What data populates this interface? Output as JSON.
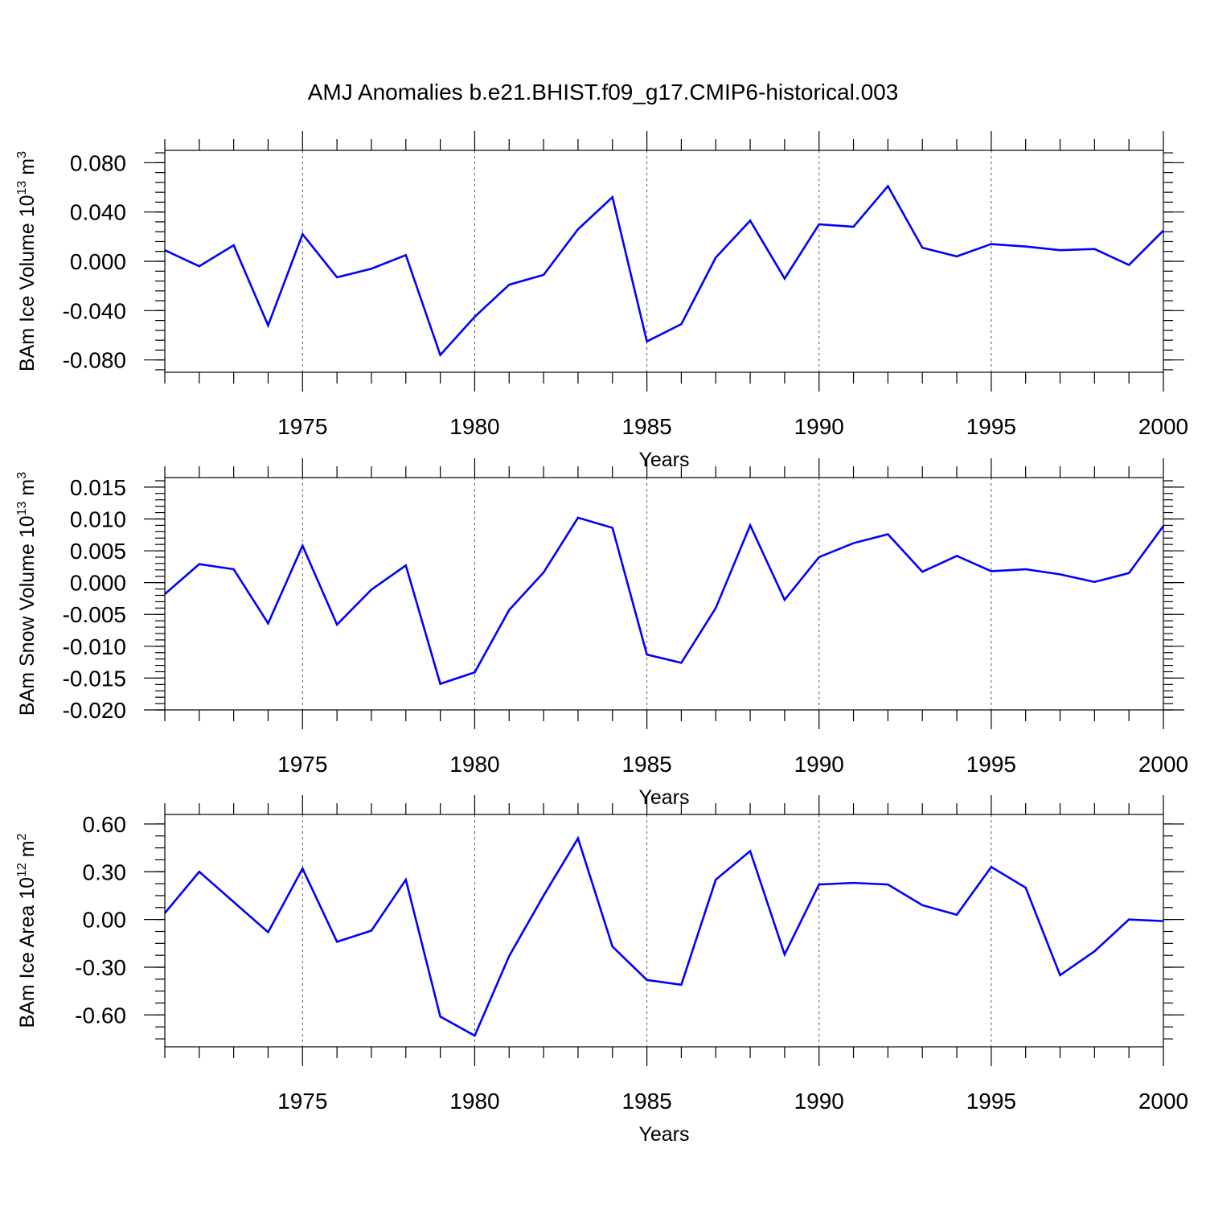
{
  "title": "AMJ Anomalies b.e21.BHIST.f09_g17.CMIP6-historical.003",
  "colors": {
    "line": "#0000ff",
    "axis": "#000000",
    "grid": "#555555"
  },
  "chart_data": [
    {
      "type": "line",
      "ylabel": "BAm Ice Volume 10",
      "ylabel_exp": "13",
      "ylabel_unit": " m",
      "ylabel_unit_exp": "3",
      "xlabel": "Years",
      "xlim": [
        1971,
        2000
      ],
      "ylim": [
        -0.09,
        0.09
      ],
      "ytick_values": [
        -0.08,
        -0.04,
        0.0,
        0.04,
        0.08
      ],
      "ytick_labels": [
        "-0.080",
        "-0.040",
        "0.000",
        "0.040",
        "0.080"
      ],
      "yminor_step": 0.008,
      "xtick_values": [
        1975,
        1980,
        1985,
        1990,
        1995,
        2000
      ],
      "xtick_labels": [
        "1975",
        "1980",
        "1985",
        "1990",
        "1995",
        "2000"
      ],
      "x": [
        1971,
        1972,
        1973,
        1974,
        1975,
        1976,
        1977,
        1978,
        1979,
        1980,
        1981,
        1982,
        1983,
        1984,
        1985,
        1986,
        1987,
        1988,
        1989,
        1990,
        1991,
        1992,
        1993,
        1994,
        1995,
        1996,
        1997,
        1998,
        1999,
        2000
      ],
      "y": [
        0.009,
        -0.004,
        0.013,
        -0.052,
        0.022,
        -0.013,
        -0.006,
        0.005,
        -0.076,
        -0.045,
        -0.019,
        -0.011,
        0.026,
        0.052,
        -0.065,
        -0.051,
        0.003,
        0.033,
        -0.014,
        0.03,
        0.028,
        0.061,
        0.011,
        0.004,
        0.014,
        0.012,
        0.009,
        0.01,
        -0.003,
        0.025
      ]
    },
    {
      "type": "line",
      "ylabel": "BAm Snow Volume 10",
      "ylabel_exp": "13",
      "ylabel_unit": " m",
      "ylabel_unit_exp": "3",
      "xlabel": "Years",
      "xlim": [
        1971,
        2000
      ],
      "ylim": [
        -0.02,
        0.0165
      ],
      "ytick_values": [
        -0.02,
        -0.015,
        -0.01,
        -0.005,
        0.0,
        0.005,
        0.01,
        0.015
      ],
      "ytick_labels": [
        "-0.020",
        "-0.015",
        "-0.010",
        "-0.005",
        "0.000",
        "0.005",
        "0.010",
        "0.015"
      ],
      "yminor_step": 0.001,
      "xtick_values": [
        1975,
        1980,
        1985,
        1990,
        1995,
        2000
      ],
      "xtick_labels": [
        "1975",
        "1980",
        "1985",
        "1990",
        "1995",
        "2000"
      ],
      "x": [
        1971,
        1972,
        1973,
        1974,
        1975,
        1976,
        1977,
        1978,
        1979,
        1980,
        1981,
        1982,
        1983,
        1984,
        1985,
        1986,
        1987,
        1988,
        1989,
        1990,
        1991,
        1992,
        1993,
        1994,
        1995,
        1996,
        1997,
        1998,
        1999,
        2000
      ],
      "y": [
        -0.0018,
        0.0029,
        0.0021,
        -0.0064,
        0.0058,
        -0.0066,
        -0.0011,
        0.0027,
        -0.0159,
        -0.0141,
        -0.0043,
        0.0016,
        0.0102,
        0.0086,
        -0.0113,
        -0.0126,
        -0.004,
        0.009,
        -0.0027,
        0.004,
        0.0062,
        0.0076,
        0.0017,
        0.0042,
        0.0018,
        0.0021,
        0.0013,
        0.0001,
        0.0015,
        0.0089
      ]
    },
    {
      "type": "line",
      "ylabel": "BAm Ice Area 10",
      "ylabel_exp": "12",
      "ylabel_unit": " m",
      "ylabel_unit_exp": "2",
      "xlabel": "Years",
      "xlim": [
        1971,
        2000
      ],
      "ylim": [
        -0.8,
        0.66
      ],
      "ytick_values": [
        -0.6,
        -0.3,
        0.0,
        0.3,
        0.6
      ],
      "ytick_labels": [
        "-0.60",
        "-0.30",
        "0.00",
        "0.30",
        "0.60"
      ],
      "yminor_step": 0.075,
      "xtick_values": [
        1975,
        1980,
        1985,
        1990,
        1995,
        2000
      ],
      "xtick_labels": [
        "1975",
        "1980",
        "1985",
        "1990",
        "1995",
        "2000"
      ],
      "x": [
        1971,
        1972,
        1973,
        1974,
        1975,
        1976,
        1977,
        1978,
        1979,
        1980,
        1981,
        1982,
        1983,
        1984,
        1985,
        1986,
        1987,
        1988,
        1989,
        1990,
        1991,
        1992,
        1993,
        1994,
        1995,
        1996,
        1997,
        1998,
        1999,
        2000
      ],
      "y": [
        0.04,
        0.3,
        0.11,
        -0.08,
        0.32,
        -0.14,
        -0.07,
        0.25,
        -0.61,
        -0.73,
        -0.23,
        0.15,
        0.51,
        -0.17,
        -0.38,
        -0.41,
        0.25,
        0.43,
        -0.22,
        0.22,
        0.23,
        0.22,
        0.09,
        0.03,
        0.33,
        0.2,
        -0.35,
        -0.2,
        0.0,
        -0.01
      ]
    }
  ]
}
